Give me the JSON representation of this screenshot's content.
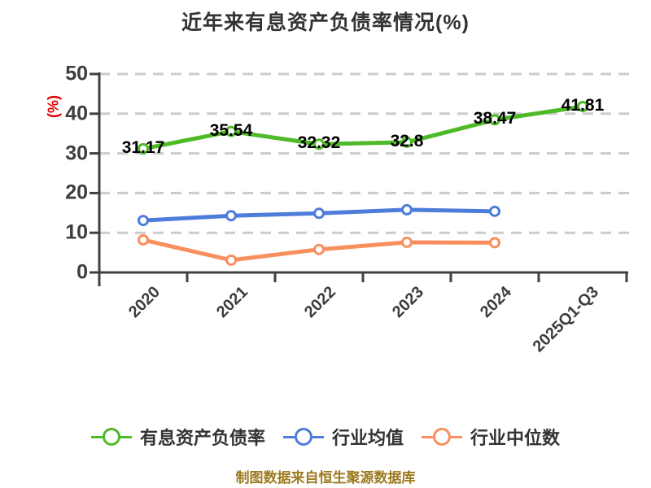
{
  "title": "近年来有息资产负债率情况(%)",
  "source_note": "制图数据来自恒生聚源数据库",
  "colors": {
    "primary_green": "#4eba27",
    "industry_avg_blue": "#4d7cdb",
    "industry_median_orange": "#f78f5e",
    "grid": "#cccccc",
    "axis": "#404040",
    "title_text": "#333333",
    "tick_text": "#3d3d3d",
    "data_label_text": "#000000",
    "y_axis_name_red": "#e60000",
    "source_text": "#9c7a1e"
  },
  "chart_data": {
    "type": "line",
    "title": "近年来有息资产负债率情况(%)",
    "ylabel": "(%)",
    "xlabel": "",
    "categories": [
      "2020",
      "2021",
      "2022",
      "2023",
      "2024",
      "2025Q1-Q3"
    ],
    "series": [
      {
        "name": "有息资产负债率",
        "color": "#4eba27",
        "values": [
          31.17,
          35.54,
          32.32,
          32.8,
          38.47,
          41.81
        ],
        "labels": [
          "31.17",
          "35.54",
          "32.32",
          "32.8",
          "38.47",
          "41.81"
        ],
        "show_labels": true
      },
      {
        "name": "行业均值",
        "color": "#4d7cdb",
        "values": [
          13.1,
          14.3,
          14.9,
          15.8,
          15.4
        ],
        "show_labels": false
      },
      {
        "name": "行业中位数",
        "color": "#f78f5e",
        "values": [
          8.2,
          3.1,
          5.8,
          7.6,
          7.5
        ],
        "show_labels": false
      }
    ],
    "ylim": [
      0,
      50
    ],
    "yticks": [
      0,
      10,
      20,
      30,
      40,
      50
    ],
    "grid": "horizontal-dashed",
    "legend_position": "bottom",
    "marker": "circle-white-fill"
  }
}
